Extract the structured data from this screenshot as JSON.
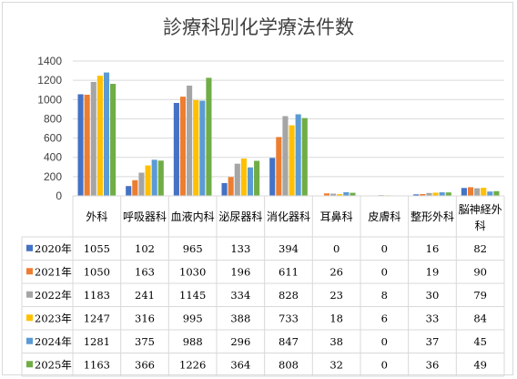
{
  "chart_data": {
    "type": "bar",
    "title": "診療科別化学療法件数",
    "categories": [
      "外科",
      "呼吸器科",
      "血液内科",
      "泌尿器科",
      "消化器科",
      "耳鼻科",
      "皮膚科",
      "整形外科",
      "脳神経外科"
    ],
    "ylim": [
      0,
      1400
    ],
    "yticks": [
      "0",
      "200",
      "400",
      "600",
      "800",
      "1000",
      "1200",
      "1400"
    ],
    "grid": true,
    "legend": "data-table",
    "series": [
      {
        "name": "2020年",
        "color": "#4472c4",
        "values": [
          1055,
          102,
          965,
          133,
          394,
          0,
          0,
          16,
          82
        ]
      },
      {
        "name": "2021年",
        "color": "#ed7d31",
        "values": [
          1050,
          163,
          1030,
          196,
          611,
          26,
          0,
          19,
          90
        ]
      },
      {
        "name": "2022年",
        "color": "#a5a5a5",
        "values": [
          1183,
          241,
          1145,
          334,
          828,
          23,
          8,
          30,
          79
        ]
      },
      {
        "name": "2023年",
        "color": "#ffc000",
        "values": [
          1247,
          316,
          995,
          388,
          733,
          18,
          6,
          33,
          84
        ]
      },
      {
        "name": "2024年",
        "color": "#5b9bd5",
        "values": [
          1281,
          375,
          988,
          296,
          847,
          38,
          0,
          37,
          45
        ]
      },
      {
        "name": "2025年",
        "color": "#70ad47",
        "values": [
          1163,
          366,
          1226,
          364,
          808,
          32,
          0,
          36,
          49
        ]
      }
    ]
  }
}
